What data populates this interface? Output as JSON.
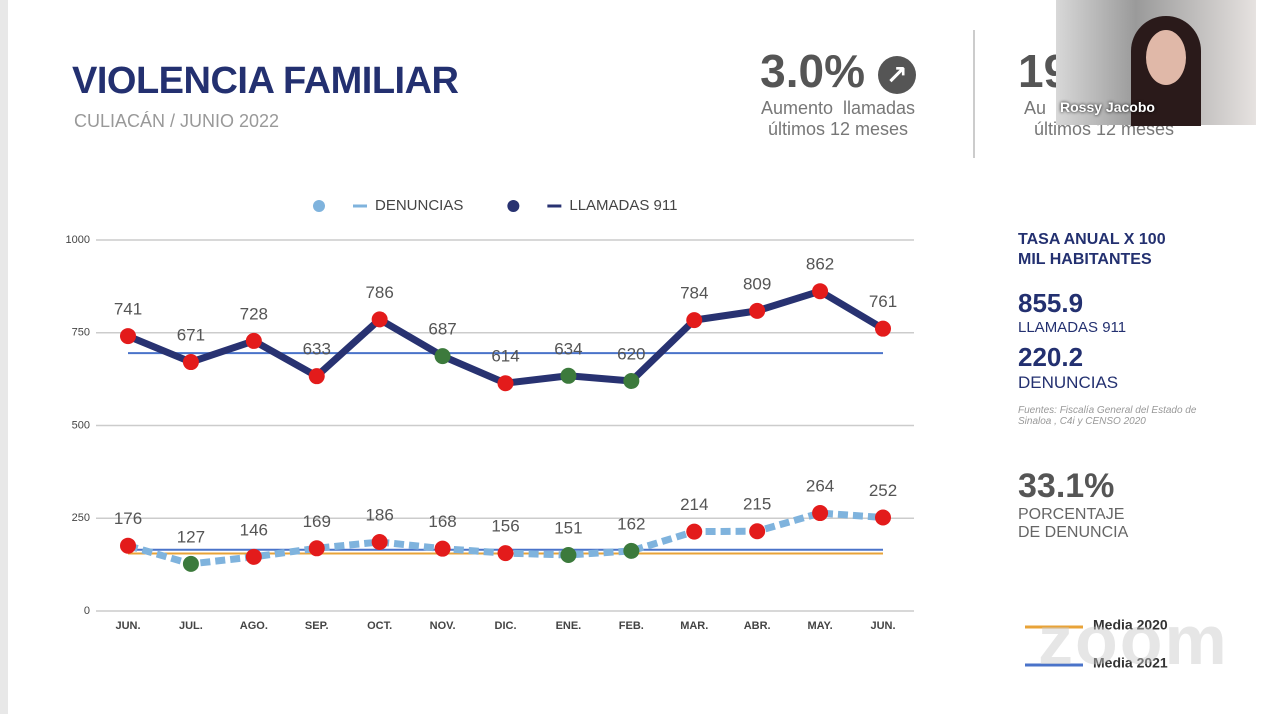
{
  "chart_data": {
    "type": "line",
    "title": "VIOLENCIA FAMILIAR",
    "subtitle": "CULIACÁN / JUNIO 2022",
    "categories": [
      "JUN.",
      "JUL.",
      "AGO.",
      "SEP.",
      "OCT.",
      "NOV.",
      "DIC.",
      "ENE.",
      "FEB.",
      "MAR.",
      "ABR.",
      "MAY.",
      "JUN."
    ],
    "series": [
      {
        "name": "DENUNCIAS",
        "color": "#7fb3dd",
        "values": [
          176,
          127,
          146,
          169,
          186,
          168,
          156,
          151,
          162,
          214,
          215,
          264,
          252
        ],
        "marker_colors": [
          "#e31b1b",
          "#3c7a3c",
          "#e31b1b",
          "#e31b1b",
          "#e31b1b",
          "#e31b1b",
          "#e31b1b",
          "#3c7a3c",
          "#3c7a3c",
          "#e31b1b",
          "#e31b1b",
          "#e31b1b",
          "#e31b1b"
        ]
      },
      {
        "name": "LLAMADAS 911",
        "color": "#283271",
        "values": [
          741,
          671,
          728,
          633,
          786,
          687,
          614,
          634,
          620,
          784,
          809,
          862,
          761
        ],
        "marker_colors": [
          "#e31b1b",
          "#e31b1b",
          "#e31b1b",
          "#e31b1b",
          "#e31b1b",
          "#3c7a3c",
          "#e31b1b",
          "#3c7a3c",
          "#3c7a3c",
          "#e31b1b",
          "#e31b1b",
          "#e31b1b",
          "#e31b1b"
        ]
      }
    ],
    "reference_lines": [
      {
        "name": "Media 2020",
        "color": "#e8a338",
        "values": [
          155
        ]
      },
      {
        "name": "Media 2021",
        "color": "#4a73c9",
        "values": [
          695,
          165
        ]
      }
    ],
    "ylim": [
      0,
      1000
    ],
    "yticks": [
      0,
      250,
      500,
      750,
      1000
    ],
    "grid": true
  },
  "kpis": [
    {
      "value": "3.0%",
      "label": "Aumento  llamadas",
      "label2": "últimos 12 meses"
    },
    {
      "value": "19",
      "label": "Au",
      "label2": "últimos 12 meses"
    }
  ],
  "panel": {
    "header": "TASA ANUAL X 100 MIL HABITANTES",
    "stat1": "855.9",
    "stat1_label": "LLAMADAS 911",
    "stat2": "220.2",
    "stat2_label": "DENUNCIAS",
    "source": "Fuentes: Fiscalía General del Estado de Sinaloa , C4i y CENSO 2020",
    "stat3": "33.1%",
    "stat3_label": "PORCENTAJE DE DENUNCIA"
  },
  "overlay": {
    "participant": "Rossy Jacobo",
    "watermark": "zoom"
  }
}
